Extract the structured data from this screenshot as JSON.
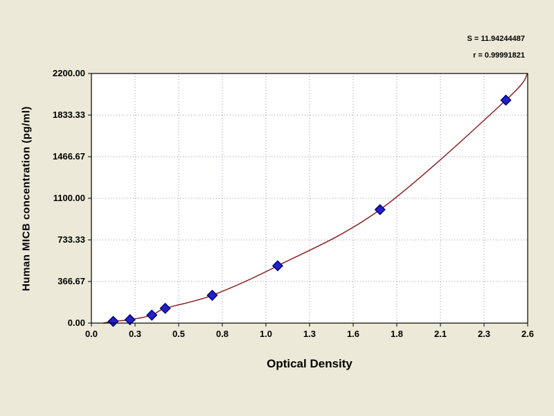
{
  "chart_data": {
    "type": "scatter",
    "title": "",
    "xlabel": "Optical Density",
    "ylabel": "Human MICB concentration (pg/ml)",
    "xlim": [
      0,
      2.6
    ],
    "ylim": [
      0,
      2200
    ],
    "grid": "dotted",
    "legend": "none",
    "x_ticks": [
      0,
      0.26,
      0.52,
      0.78,
      1.04,
      1.3,
      1.56,
      1.82,
      2.08,
      2.34,
      2.6
    ],
    "x_tick_labels": [
      "0.0",
      "0.3",
      "0.5",
      "0.8",
      "1.0",
      "1.3",
      "1.6",
      "1.8",
      "2.1",
      "2.3",
      "2.6"
    ],
    "y_ticks": [
      0,
      366.67,
      733.33,
      1100.0,
      1466.67,
      1833.33,
      2200.0
    ],
    "y_tick_labels": [
      "0.00",
      "366.67",
      "733.33",
      "1100.00",
      "1466.67",
      "1833.33",
      "2200.00"
    ],
    "points": [
      {
        "x": 0.13,
        "y": 15
      },
      {
        "x": 0.23,
        "y": 30
      },
      {
        "x": 0.36,
        "y": 70
      },
      {
        "x": 0.44,
        "y": 130
      },
      {
        "x": 0.72,
        "y": 245
      },
      {
        "x": 1.11,
        "y": 505
      },
      {
        "x": 1.72,
        "y": 1000
      },
      {
        "x": 2.47,
        "y": 1965
      }
    ],
    "curve_start": {
      "x": 0.07,
      "y": 0
    },
    "curve_end": {
      "x": 2.6,
      "y": 2200
    },
    "annotations": {
      "s_label": "S = 11.94244487",
      "r_label": "r = 0.99991821"
    },
    "colors": {
      "background": "#ece9d8",
      "plot_background": "#ffffff",
      "grid": "#8c8cb4",
      "border": "#000000",
      "curve": "#8b1f1f",
      "marker_fill": "#2121c8",
      "marker_stroke": "#00007d",
      "text": "#000000"
    }
  }
}
